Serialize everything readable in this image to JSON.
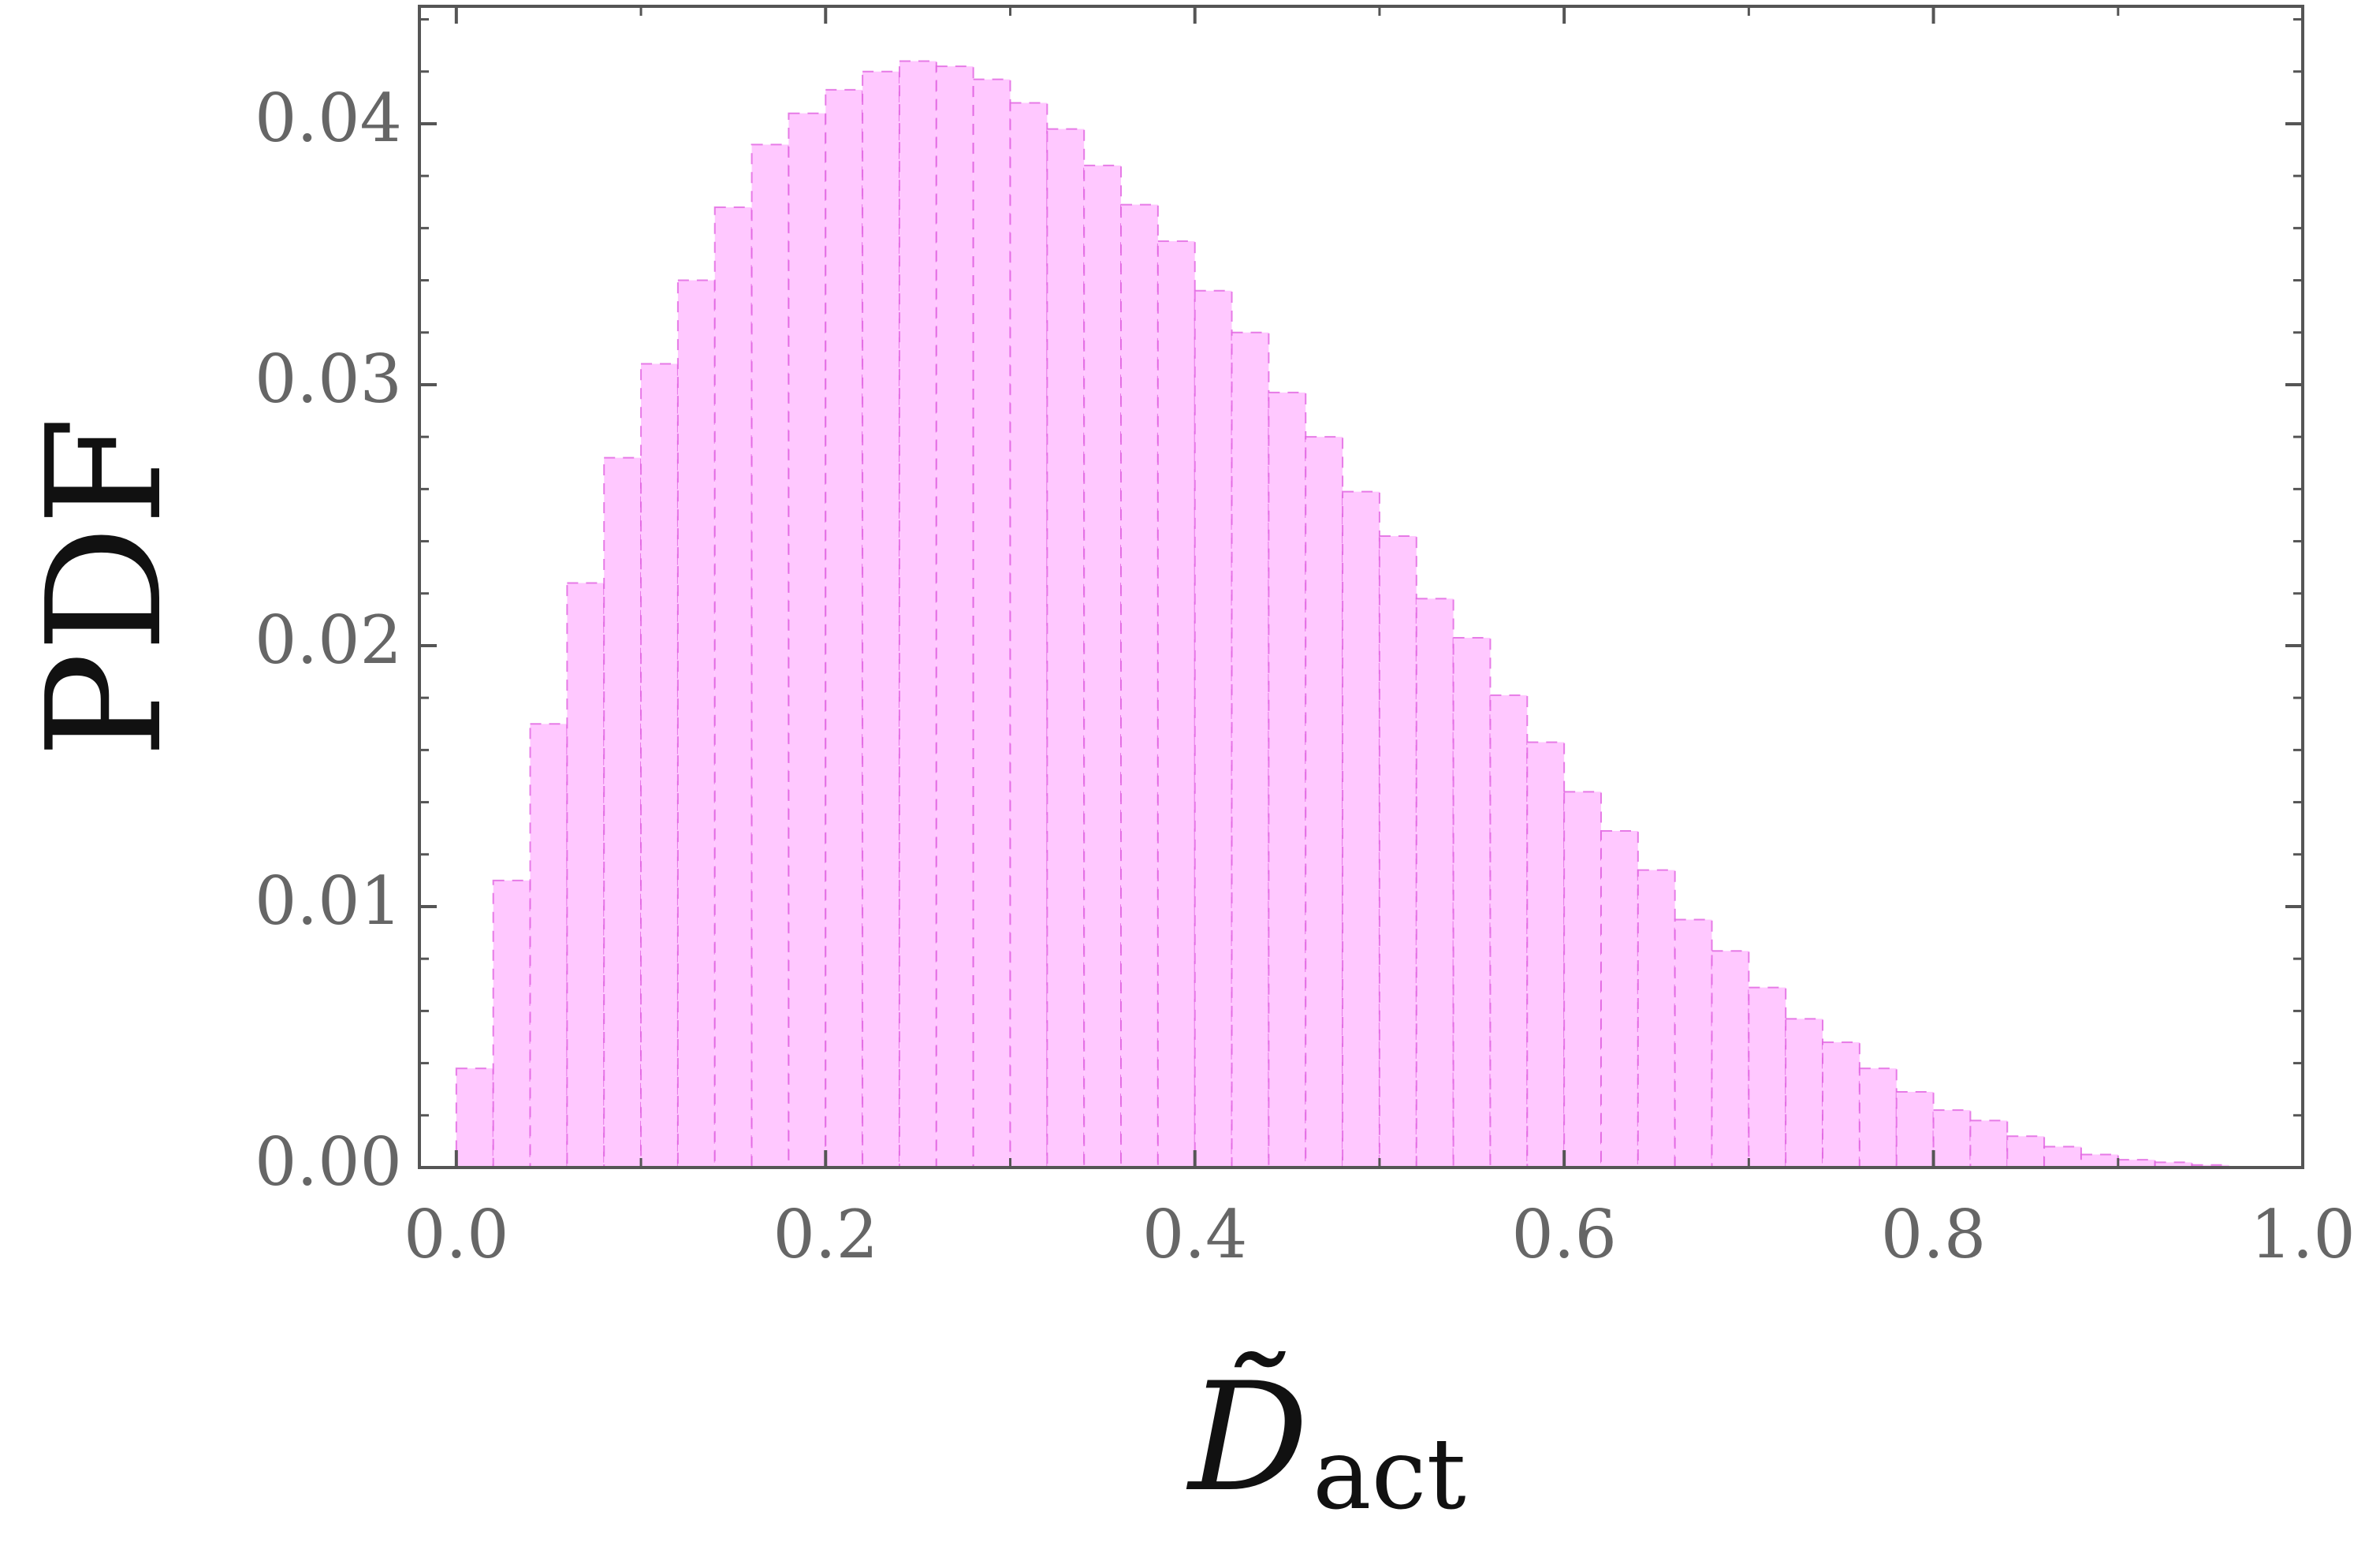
{
  "chart_data": {
    "type": "histogram",
    "y_label": "PDF",
    "x_label": "D̃",
    "x_label_subscript": "act",
    "color": "#ffc8ff",
    "edge_color": "#e060e0",
    "bins": [
      0,
      0.02,
      0.04,
      0.06,
      0.08,
      0.1,
      0.12,
      0.14,
      0.16,
      0.18,
      0.2,
      0.22,
      0.24,
      0.26,
      0.28,
      0.3,
      0.32,
      0.34,
      0.36,
      0.38,
      0.4,
      0.42,
      0.44,
      0.46,
      0.48,
      0.5,
      0.52,
      0.54,
      0.56,
      0.58,
      0.6,
      0.62,
      0.64,
      0.66,
      0.68,
      0.7,
      0.72,
      0.74,
      0.76,
      0.78,
      0.8,
      0.82,
      0.84,
      0.86,
      0.88,
      0.9,
      0.92,
      0.94,
      0.96
    ],
    "values": [
      0.0038,
      0.011,
      0.017,
      0.0224,
      0.0272,
      0.0308,
      0.034,
      0.0368,
      0.0392,
      0.0404,
      0.0413,
      0.042,
      0.0424,
      0.0422,
      0.0417,
      0.0408,
      0.0398,
      0.0384,
      0.0369,
      0.0355,
      0.0336,
      0.032,
      0.0297,
      0.028,
      0.0259,
      0.0242,
      0.0218,
      0.0203,
      0.0181,
      0.0163,
      0.0144,
      0.0129,
      0.0114,
      0.0095,
      0.0083,
      0.0069,
      0.0057,
      0.0048,
      0.0038,
      0.0029,
      0.0022,
      0.0018,
      0.0012,
      0.0008,
      0.0005,
      0.0003,
      0.0002,
      0.0001
    ],
    "xlim": [
      -0.02,
      1.0
    ],
    "ylim": [
      0,
      0.0445
    ],
    "xticks": [
      {
        "value": 0,
        "label": "0.0"
      },
      0.2,
      0.4,
      0.6,
      0.8,
      {
        "value": 1,
        "label": "1.0"
      }
    ],
    "yticks": [
      {
        "value": 0,
        "label": "0.00"
      },
      0.01,
      0.02,
      0.03,
      0.04
    ],
    "xminorticks": [
      0.1,
      0.3,
      0.5,
      0.7,
      0.9
    ],
    "yminorticks": [
      0.002,
      0.004,
      0.006,
      0.008,
      0.012,
      0.014,
      0.016,
      0.018,
      0.022,
      0.024,
      0.026,
      0.028,
      0.032,
      0.034,
      0.036,
      0.038,
      0.042,
      0.044
    ]
  }
}
